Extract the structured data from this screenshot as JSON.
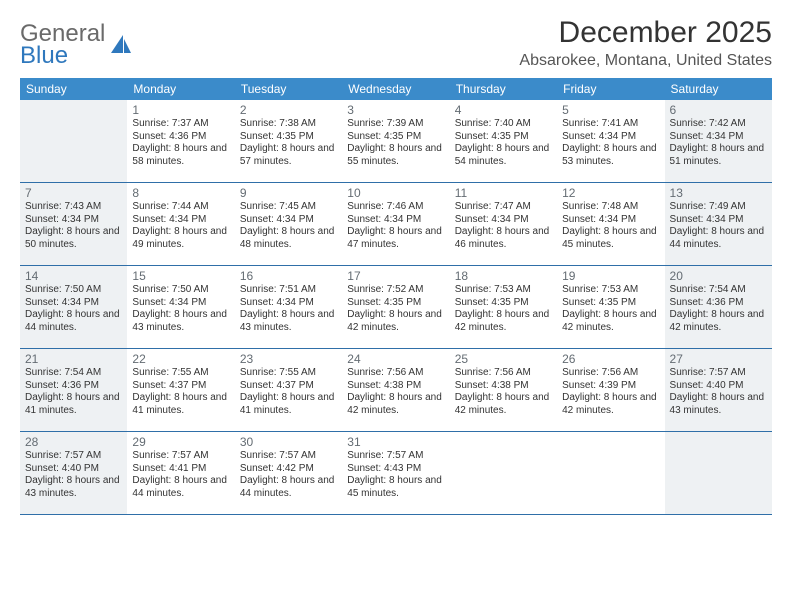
{
  "brand": {
    "part1": "General",
    "part2": "Blue"
  },
  "title": "December 2025",
  "location": "Absarokee, Montana, United States",
  "day_names": [
    "Sunday",
    "Monday",
    "Tuesday",
    "Wednesday",
    "Thursday",
    "Friday",
    "Saturday"
  ],
  "colors": {
    "header_bg": "#3b8bca",
    "header_text": "#ffffff",
    "shaded_bg": "#eef1f3",
    "row_border": "#2f6fa8",
    "logo_blue": "#2f78bd",
    "logo_gray": "#6a6a6a"
  },
  "weeks": [
    [
      {
        "num": "",
        "sunrise": "",
        "sunset": "",
        "daylight": "",
        "shaded": true
      },
      {
        "num": "1",
        "sunrise": "Sunrise: 7:37 AM",
        "sunset": "Sunset: 4:36 PM",
        "daylight": "Daylight: 8 hours and 58 minutes.",
        "shaded": false
      },
      {
        "num": "2",
        "sunrise": "Sunrise: 7:38 AM",
        "sunset": "Sunset: 4:35 PM",
        "daylight": "Daylight: 8 hours and 57 minutes.",
        "shaded": false
      },
      {
        "num": "3",
        "sunrise": "Sunrise: 7:39 AM",
        "sunset": "Sunset: 4:35 PM",
        "daylight": "Daylight: 8 hours and 55 minutes.",
        "shaded": false
      },
      {
        "num": "4",
        "sunrise": "Sunrise: 7:40 AM",
        "sunset": "Sunset: 4:35 PM",
        "daylight": "Daylight: 8 hours and 54 minutes.",
        "shaded": false
      },
      {
        "num": "5",
        "sunrise": "Sunrise: 7:41 AM",
        "sunset": "Sunset: 4:34 PM",
        "daylight": "Daylight: 8 hours and 53 minutes.",
        "shaded": false
      },
      {
        "num": "6",
        "sunrise": "Sunrise: 7:42 AM",
        "sunset": "Sunset: 4:34 PM",
        "daylight": "Daylight: 8 hours and 51 minutes.",
        "shaded": true
      }
    ],
    [
      {
        "num": "7",
        "sunrise": "Sunrise: 7:43 AM",
        "sunset": "Sunset: 4:34 PM",
        "daylight": "Daylight: 8 hours and 50 minutes.",
        "shaded": true
      },
      {
        "num": "8",
        "sunrise": "Sunrise: 7:44 AM",
        "sunset": "Sunset: 4:34 PM",
        "daylight": "Daylight: 8 hours and 49 minutes.",
        "shaded": false
      },
      {
        "num": "9",
        "sunrise": "Sunrise: 7:45 AM",
        "sunset": "Sunset: 4:34 PM",
        "daylight": "Daylight: 8 hours and 48 minutes.",
        "shaded": false
      },
      {
        "num": "10",
        "sunrise": "Sunrise: 7:46 AM",
        "sunset": "Sunset: 4:34 PM",
        "daylight": "Daylight: 8 hours and 47 minutes.",
        "shaded": false
      },
      {
        "num": "11",
        "sunrise": "Sunrise: 7:47 AM",
        "sunset": "Sunset: 4:34 PM",
        "daylight": "Daylight: 8 hours and 46 minutes.",
        "shaded": false
      },
      {
        "num": "12",
        "sunrise": "Sunrise: 7:48 AM",
        "sunset": "Sunset: 4:34 PM",
        "daylight": "Daylight: 8 hours and 45 minutes.",
        "shaded": false
      },
      {
        "num": "13",
        "sunrise": "Sunrise: 7:49 AM",
        "sunset": "Sunset: 4:34 PM",
        "daylight": "Daylight: 8 hours and 44 minutes.",
        "shaded": true
      }
    ],
    [
      {
        "num": "14",
        "sunrise": "Sunrise: 7:50 AM",
        "sunset": "Sunset: 4:34 PM",
        "daylight": "Daylight: 8 hours and 44 minutes.",
        "shaded": true
      },
      {
        "num": "15",
        "sunrise": "Sunrise: 7:50 AM",
        "sunset": "Sunset: 4:34 PM",
        "daylight": "Daylight: 8 hours and 43 minutes.",
        "shaded": false
      },
      {
        "num": "16",
        "sunrise": "Sunrise: 7:51 AM",
        "sunset": "Sunset: 4:34 PM",
        "daylight": "Daylight: 8 hours and 43 minutes.",
        "shaded": false
      },
      {
        "num": "17",
        "sunrise": "Sunrise: 7:52 AM",
        "sunset": "Sunset: 4:35 PM",
        "daylight": "Daylight: 8 hours and 42 minutes.",
        "shaded": false
      },
      {
        "num": "18",
        "sunrise": "Sunrise: 7:53 AM",
        "sunset": "Sunset: 4:35 PM",
        "daylight": "Daylight: 8 hours and 42 minutes.",
        "shaded": false
      },
      {
        "num": "19",
        "sunrise": "Sunrise: 7:53 AM",
        "sunset": "Sunset: 4:35 PM",
        "daylight": "Daylight: 8 hours and 42 minutes.",
        "shaded": false
      },
      {
        "num": "20",
        "sunrise": "Sunrise: 7:54 AM",
        "sunset": "Sunset: 4:36 PM",
        "daylight": "Daylight: 8 hours and 42 minutes.",
        "shaded": true
      }
    ],
    [
      {
        "num": "21",
        "sunrise": "Sunrise: 7:54 AM",
        "sunset": "Sunset: 4:36 PM",
        "daylight": "Daylight: 8 hours and 41 minutes.",
        "shaded": true
      },
      {
        "num": "22",
        "sunrise": "Sunrise: 7:55 AM",
        "sunset": "Sunset: 4:37 PM",
        "daylight": "Daylight: 8 hours and 41 minutes.",
        "shaded": false
      },
      {
        "num": "23",
        "sunrise": "Sunrise: 7:55 AM",
        "sunset": "Sunset: 4:37 PM",
        "daylight": "Daylight: 8 hours and 41 minutes.",
        "shaded": false
      },
      {
        "num": "24",
        "sunrise": "Sunrise: 7:56 AM",
        "sunset": "Sunset: 4:38 PM",
        "daylight": "Daylight: 8 hours and 42 minutes.",
        "shaded": false
      },
      {
        "num": "25",
        "sunrise": "Sunrise: 7:56 AM",
        "sunset": "Sunset: 4:38 PM",
        "daylight": "Daylight: 8 hours and 42 minutes.",
        "shaded": false
      },
      {
        "num": "26",
        "sunrise": "Sunrise: 7:56 AM",
        "sunset": "Sunset: 4:39 PM",
        "daylight": "Daylight: 8 hours and 42 minutes.",
        "shaded": false
      },
      {
        "num": "27",
        "sunrise": "Sunrise: 7:57 AM",
        "sunset": "Sunset: 4:40 PM",
        "daylight": "Daylight: 8 hours and 43 minutes.",
        "shaded": true
      }
    ],
    [
      {
        "num": "28",
        "sunrise": "Sunrise: 7:57 AM",
        "sunset": "Sunset: 4:40 PM",
        "daylight": "Daylight: 8 hours and 43 minutes.",
        "shaded": true
      },
      {
        "num": "29",
        "sunrise": "Sunrise: 7:57 AM",
        "sunset": "Sunset: 4:41 PM",
        "daylight": "Daylight: 8 hours and 44 minutes.",
        "shaded": false
      },
      {
        "num": "30",
        "sunrise": "Sunrise: 7:57 AM",
        "sunset": "Sunset: 4:42 PM",
        "daylight": "Daylight: 8 hours and 44 minutes.",
        "shaded": false
      },
      {
        "num": "31",
        "sunrise": "Sunrise: 7:57 AM",
        "sunset": "Sunset: 4:43 PM",
        "daylight": "Daylight: 8 hours and 45 minutes.",
        "shaded": false
      },
      {
        "num": "",
        "sunrise": "",
        "sunset": "",
        "daylight": "",
        "shaded": false
      },
      {
        "num": "",
        "sunrise": "",
        "sunset": "",
        "daylight": "",
        "shaded": false
      },
      {
        "num": "",
        "sunrise": "",
        "sunset": "",
        "daylight": "",
        "shaded": true
      }
    ]
  ]
}
